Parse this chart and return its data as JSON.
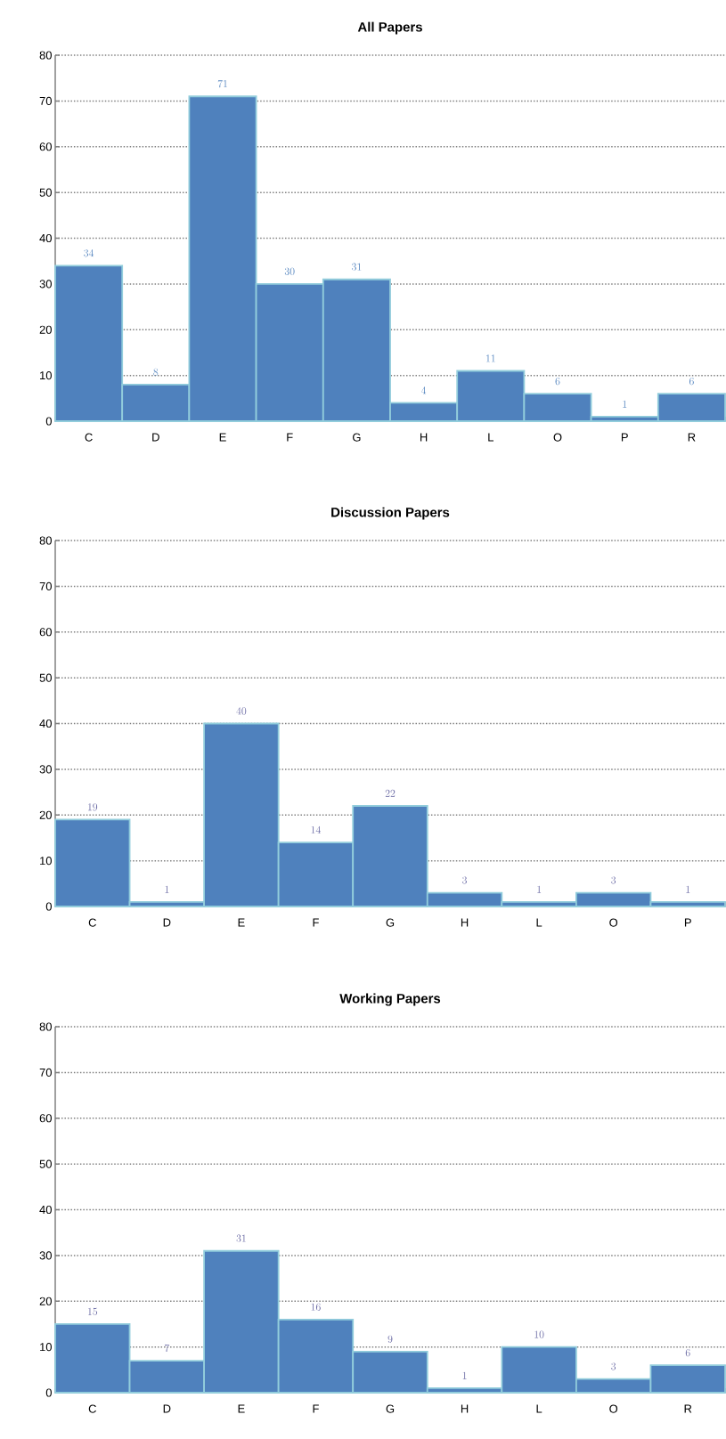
{
  "chart_data": [
    {
      "type": "bar",
      "title": "All Papers",
      "categories": [
        "C",
        "D",
        "E",
        "F",
        "G",
        "H",
        "L",
        "O",
        "P",
        "R"
      ],
      "values": [
        34,
        8,
        71,
        30,
        31,
        4,
        11,
        6,
        1,
        6
      ],
      "color": "#4f81bd",
      "ylim": [
        0,
        80
      ],
      "yticks": [
        0,
        10,
        20,
        30,
        40,
        50,
        60,
        70,
        80
      ],
      "grid": "y",
      "data_labels": true
    },
    {
      "type": "bar",
      "title": "Discussion Papers",
      "categories": [
        "C",
        "D",
        "E",
        "F",
        "G",
        "H",
        "L",
        "O",
        "P"
      ],
      "values": [
        19,
        1,
        40,
        14,
        22,
        3,
        1,
        3,
        1
      ],
      "color": "#4f81bd",
      "ylim": [
        0,
        80
      ],
      "yticks": [
        0,
        10,
        20,
        30,
        40,
        50,
        60,
        70,
        80
      ],
      "grid": "y",
      "data_labels": true
    },
    {
      "type": "bar",
      "title": "Working Papers",
      "categories": [
        "C",
        "D",
        "E",
        "F",
        "G",
        "H",
        "L",
        "O",
        "R"
      ],
      "values": [
        15,
        7,
        31,
        16,
        9,
        1,
        10,
        3,
        6
      ],
      "color": "#4f81bd",
      "ylim": [
        0,
        80
      ],
      "yticks": [
        0,
        10,
        20,
        30,
        40,
        50,
        60,
        70,
        80
      ],
      "grid": "y",
      "data_labels": true
    }
  ]
}
